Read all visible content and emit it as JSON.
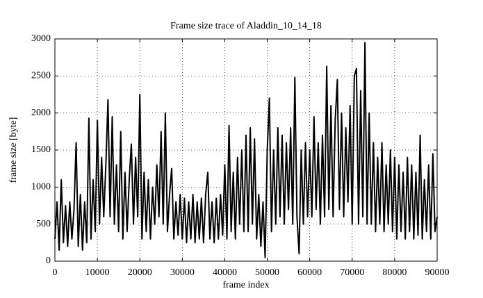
{
  "chart_data": {
    "type": "line",
    "title": "Frame size trace of Aladdin_10_14_18",
    "x_label": "frame index",
    "y_label": "frame size [byte]",
    "x": [
      0,
      500,
      1000,
      1500,
      2000,
      2500,
      3000,
      3500,
      4000,
      4500,
      5000,
      5500,
      6000,
      6500,
      7000,
      7500,
      8000,
      8500,
      9000,
      9500,
      10000,
      10500,
      11000,
      11500,
      12000,
      12500,
      13000,
      13500,
      14000,
      14500,
      15000,
      15500,
      16000,
      16500,
      17000,
      17500,
      18000,
      18500,
      19000,
      19500,
      20000,
      20500,
      21000,
      21500,
      22000,
      22500,
      23000,
      23500,
      24000,
      24500,
      25000,
      25500,
      26000,
      26500,
      27000,
      27500,
      28000,
      28500,
      29000,
      29500,
      30000,
      30500,
      31000,
      31500,
      32000,
      32500,
      33000,
      33500,
      34000,
      34500,
      35000,
      35500,
      36000,
      36500,
      37000,
      37500,
      38000,
      38500,
      39000,
      39500,
      40000,
      40500,
      41000,
      41500,
      42000,
      42500,
      43000,
      43500,
      44000,
      44500,
      45000,
      45500,
      46000,
      46500,
      47000,
      47500,
      48000,
      48500,
      49000,
      49500,
      50000,
      50500,
      51000,
      51500,
      52000,
      52500,
      53000,
      53500,
      54000,
      54500,
      55000,
      55500,
      56000,
      56500,
      57000,
      57500,
      58000,
      58500,
      59000,
      59500,
      60000,
      60500,
      61000,
      61500,
      62000,
      62500,
      63000,
      63500,
      64000,
      64500,
      65000,
      65500,
      66000,
      66500,
      67000,
      67500,
      68000,
      68500,
      69000,
      69500,
      70000,
      70500,
      71000,
      71500,
      72000,
      72500,
      73000,
      73500,
      74000,
      74500,
      75000,
      75500,
      76000,
      76500,
      77000,
      77500,
      78000,
      78500,
      79000,
      79500,
      80000,
      80500,
      81000,
      81500,
      82000,
      82500,
      83000,
      83500,
      84000,
      84500,
      85000,
      85500,
      86000,
      86500,
      87000,
      87500,
      88000,
      88500,
      89000,
      89500,
      90000
    ],
    "series": [
      {
        "color": "#000000",
        "values": [
          300,
          800,
          150,
          1100,
          250,
          750,
          200,
          800,
          300,
          700,
          1600,
          200,
          900,
          150,
          800,
          250,
          1930,
          300,
          1100,
          400,
          1900,
          500,
          1400,
          600,
          1300,
          2180,
          600,
          1950,
          500,
          1300,
          400,
          1750,
          300,
          1200,
          400,
          1100,
          1580,
          500,
          1400,
          600,
          2250,
          300,
          1200,
          400,
          1100,
          300,
          1000,
          500,
          1300,
          600,
          1750,
          500,
          2000,
          400,
          900,
          1250,
          300,
          800,
          350,
          900,
          300,
          850,
          250,
          800,
          300,
          900,
          250,
          800,
          300,
          850,
          250,
          900,
          1200,
          300,
          800,
          250,
          850,
          300,
          900,
          350,
          1300,
          300,
          1830,
          400,
          1200,
          300,
          1400,
          500,
          1500,
          400,
          1700,
          400,
          1800,
          500,
          1650,
          300,
          900,
          200,
          800,
          50,
          1500,
          2200,
          400,
          1500,
          500,
          1800,
          600,
          1700,
          500,
          1600,
          700,
          1800,
          500,
          2480,
          600,
          100,
          1500,
          500,
          1600,
          600,
          1500,
          600,
          1950,
          700,
          1600,
          500,
          1700,
          600,
          2630,
          700,
          2100,
          600,
          1900,
          2450,
          700,
          2000,
          600,
          1800,
          800,
          2100,
          500,
          2500,
          2600,
          500,
          2300,
          600,
          2950,
          500,
          2000,
          500,
          1600,
          400,
          1400,
          500,
          1600,
          400,
          1300,
          500,
          1500,
          400,
          1400,
          300,
          1300,
          400,
          1200,
          300,
          1400,
          400,
          1300,
          300,
          1200,
          350,
          1700,
          300,
          1100,
          400,
          1300,
          300,
          1450,
          400,
          600
        ]
      }
    ],
    "xlim": [
      0,
      90000
    ],
    "ylim": [
      0,
      3000
    ],
    "xticks": [
      0,
      10000,
      20000,
      30000,
      40000,
      50000,
      60000,
      70000,
      80000,
      90000
    ],
    "yticks": [
      0,
      500,
      1000,
      1500,
      2000,
      2500,
      3000
    ],
    "grid": true
  }
}
